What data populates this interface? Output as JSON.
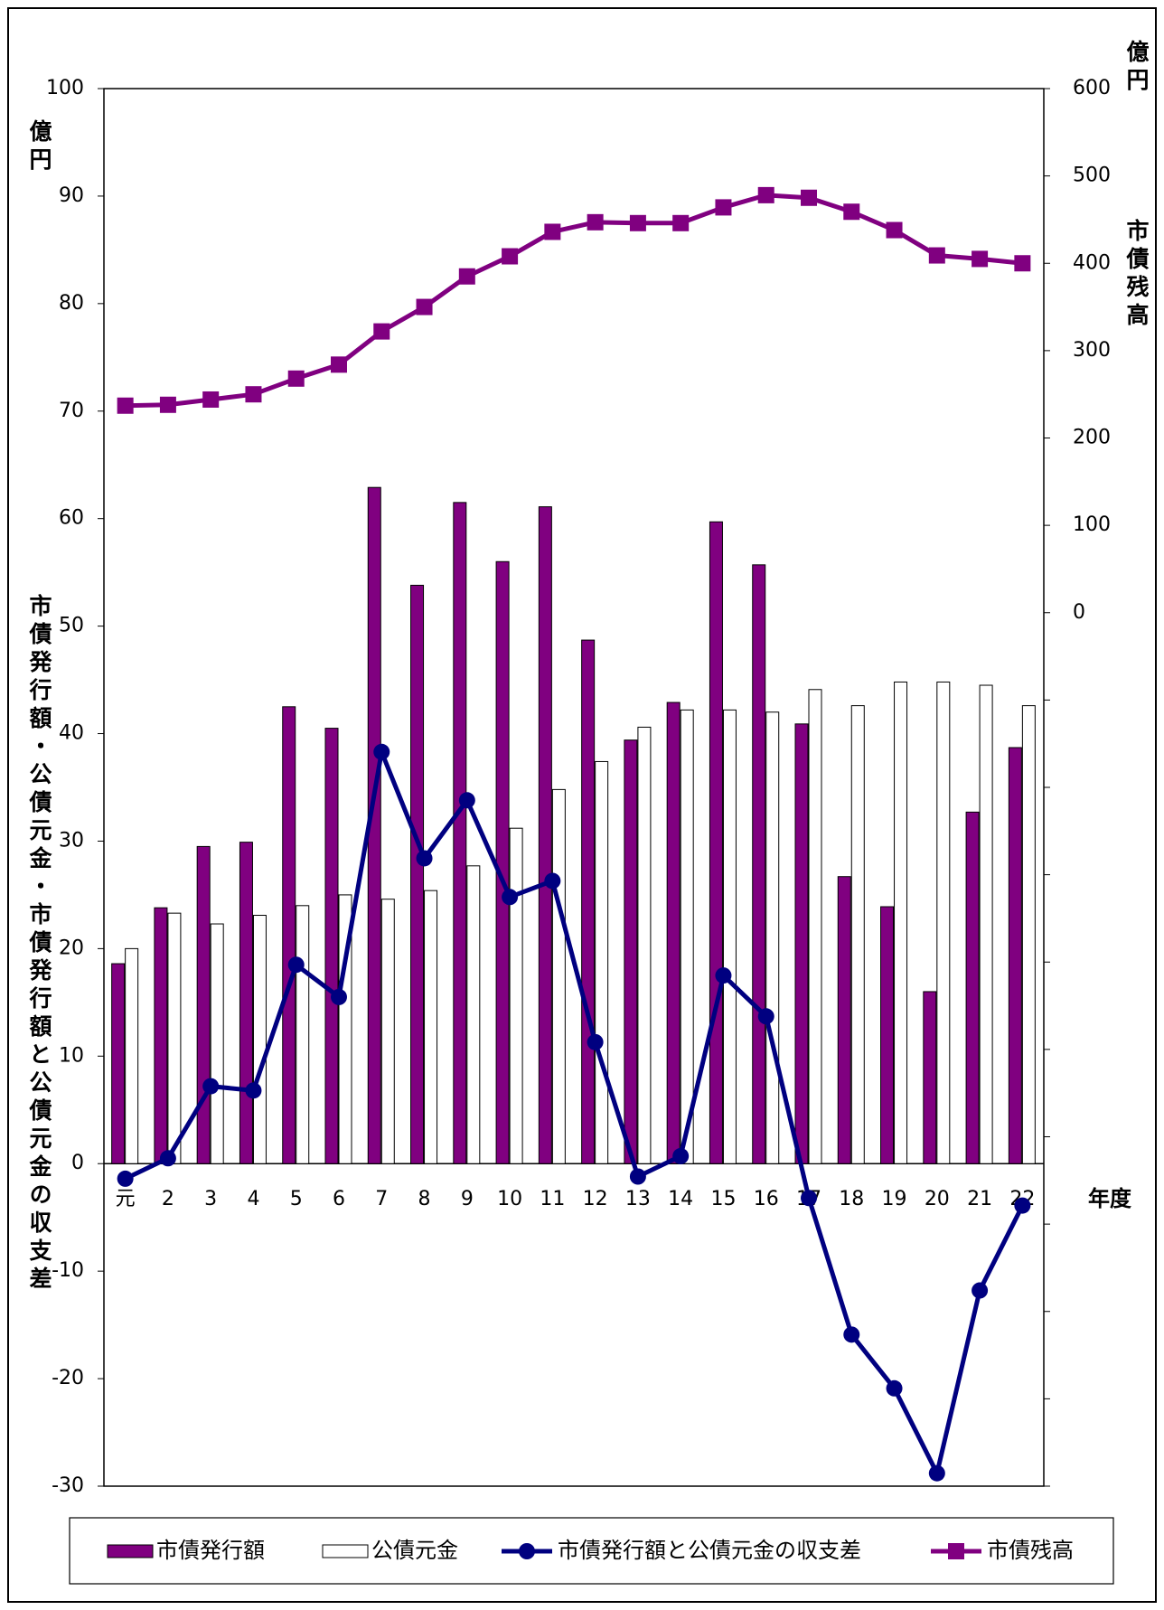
{
  "chart_data": {
    "type": "bar_line",
    "y_unit": "億円",
    "y_title": "市債発行額・公債元金・市債発行額と公債元金の収支差",
    "y2_unit": "億円",
    "y2_title": "市債残高",
    "x_title": "年度",
    "categories": [
      "元",
      "2",
      "3",
      "4",
      "5",
      "6",
      "7",
      "8",
      "9",
      "10",
      "11",
      "12",
      "13",
      "14",
      "15",
      "16",
      "17",
      "18",
      "19",
      "20",
      "21",
      "22"
    ],
    "ylim": [
      -30,
      100
    ],
    "yticks": [
      -30,
      -20,
      -10,
      0,
      10,
      20,
      30,
      40,
      50,
      60,
      70,
      80,
      90,
      100
    ],
    "y2lim": [
      -1000,
      600
    ],
    "y2ticks": [
      {
        "value": -1000,
        "label": null
      },
      {
        "value": -900,
        "label": null
      },
      {
        "value": -800,
        "label": null
      },
      {
        "value": -700,
        "label": null
      },
      {
        "value": -600,
        "label": null
      },
      {
        "value": -500,
        "label": null
      },
      {
        "value": -400,
        "label": null
      },
      {
        "value": -300,
        "label": null
      },
      {
        "value": -200,
        "label": null
      },
      {
        "value": -100,
        "label": null
      },
      0,
      100,
      200,
      300,
      400,
      500,
      600
    ],
    "series": [
      {
        "name": "市債発行額",
        "type": "bar",
        "color": "#800080",
        "values": [
          18.6,
          23.8,
          29.5,
          29.9,
          42.5,
          40.5,
          62.9,
          53.8,
          61.5,
          56.0,
          61.1,
          48.7,
          39.4,
          42.9,
          59.7,
          55.7,
          40.9,
          26.7,
          23.9,
          16.0,
          32.7,
          38.7
        ]
      },
      {
        "name": "公債元金",
        "type": "bar",
        "color": "#ffffff",
        "values": [
          20.0,
          23.3,
          22.3,
          23.1,
          24.0,
          25.0,
          24.6,
          25.4,
          27.7,
          31.2,
          34.8,
          37.4,
          40.6,
          42.2,
          42.2,
          42.0,
          44.1,
          42.6,
          44.8,
          44.8,
          44.5,
          42.6
        ]
      },
      {
        "name": "市債発行額と公債元金の収支差",
        "type": "line",
        "marker": "circle",
        "color": "#000080",
        "values": [
          -1.4,
          0.5,
          7.2,
          6.8,
          18.5,
          15.5,
          38.3,
          28.4,
          33.8,
          24.8,
          26.3,
          11.3,
          -1.2,
          0.7,
          17.5,
          13.7,
          -3.2,
          -15.9,
          -20.9,
          -28.8,
          -11.8,
          -3.9
        ]
      },
      {
        "name": "市債残高",
        "type": "line",
        "marker": "square",
        "axis": "y2",
        "color": "#800080",
        "values": [
          237,
          238,
          244,
          250,
          268,
          284,
          322,
          350,
          385,
          408,
          436,
          447,
          446,
          446,
          464,
          478,
          475,
          459,
          438,
          409,
          405,
          400
        ]
      }
    ]
  }
}
